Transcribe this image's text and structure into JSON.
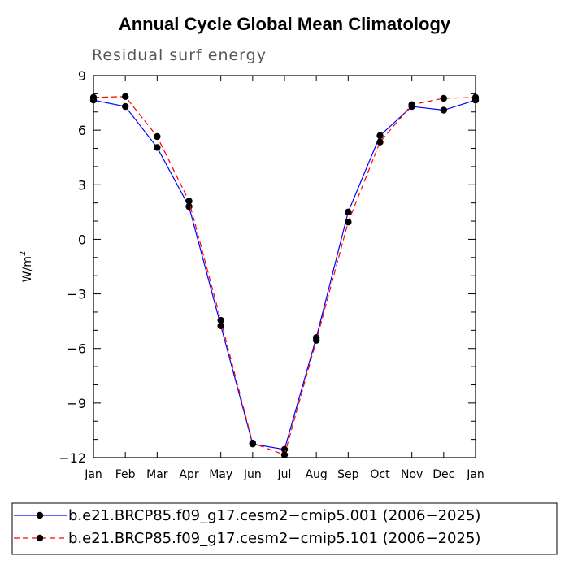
{
  "chart_data": {
    "type": "line",
    "title": "Annual Cycle Global Mean Climatology",
    "subtitle": "Residual surf energy",
    "ylabel": "W/m",
    "ylabel_sup": "2",
    "xlabel": "",
    "ylim": [
      -12,
      9
    ],
    "yticks": [
      9,
      6,
      3,
      0,
      -3,
      -6,
      -9,
      -12
    ],
    "ytick_labels": [
      "9",
      "6",
      "3",
      "0",
      "−3",
      "−6",
      "−9",
      "−12"
    ],
    "categories": [
      "Jan",
      "Feb",
      "Mar",
      "Apr",
      "May",
      "Jun",
      "Jul",
      "Aug",
      "Sep",
      "Oct",
      "Nov",
      "Dec",
      "Jan"
    ],
    "series": [
      {
        "name": "b.e21.BRCP85.f09_g17.cesm2−cmip5.001 (2006−2025)",
        "color": "#0000ff",
        "dash": "solid",
        "values": [
          7.65,
          7.3,
          5.05,
          1.8,
          -4.75,
          -11.25,
          -11.55,
          -5.4,
          1.5,
          5.7,
          7.3,
          7.1,
          7.65
        ]
      },
      {
        "name": "b.e21.BRCP85.f09_g17.cesm2−cmip5.101 (2006−2025)",
        "color": "#ff0000",
        "dash": "dashed",
        "values": [
          7.8,
          7.85,
          5.65,
          2.1,
          -4.45,
          -11.2,
          -11.85,
          -5.55,
          0.95,
          5.35,
          7.4,
          7.75,
          7.8
        ]
      }
    ],
    "legend_position": "bottom"
  }
}
